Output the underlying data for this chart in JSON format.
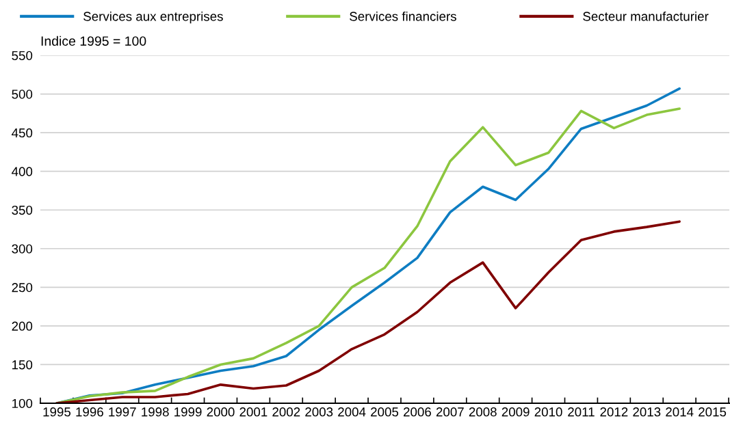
{
  "chart_data": {
    "type": "line",
    "ylabel": "Indice 1995 = 100",
    "categories": [
      "1995",
      "1996",
      "1997",
      "1998",
      "1999",
      "2000",
      "2001",
      "2002",
      "2003",
      "2004",
      "2005",
      "2006",
      "2007",
      "2008",
      "2009",
      "2010",
      "2011",
      "2012",
      "2013",
      "2014",
      "2015"
    ],
    "series": [
      {
        "name": "Services aux entreprises",
        "color": "#0e7dc2",
        "values": [
          100,
          110,
          113,
          124,
          133,
          142,
          148,
          161,
          195,
          226,
          256,
          288,
          347,
          380,
          363,
          403,
          455,
          470,
          485,
          507,
          null
        ]
      },
      {
        "name": "Services financiers",
        "color": "#8cc63f",
        "values": [
          100,
          109,
          114,
          116,
          134,
          150,
          158,
          178,
          200,
          250,
          275,
          329,
          413,
          457,
          408,
          424,
          478,
          456,
          473,
          481,
          null
        ]
      },
      {
        "name": "Secteur manufacturier",
        "color": "#800000",
        "values": [
          100,
          104,
          108,
          108,
          112,
          124,
          119,
          123,
          142,
          170,
          189,
          218,
          256,
          282,
          223,
          269,
          311,
          322,
          328,
          335,
          null
        ]
      }
    ],
    "ylim": [
      100,
      550
    ],
    "yticks": [
      100,
      150,
      200,
      250,
      300,
      350,
      400,
      450,
      500,
      550
    ],
    "grid": "y",
    "legend": "top",
    "marker": "none",
    "line_style": "solid"
  }
}
